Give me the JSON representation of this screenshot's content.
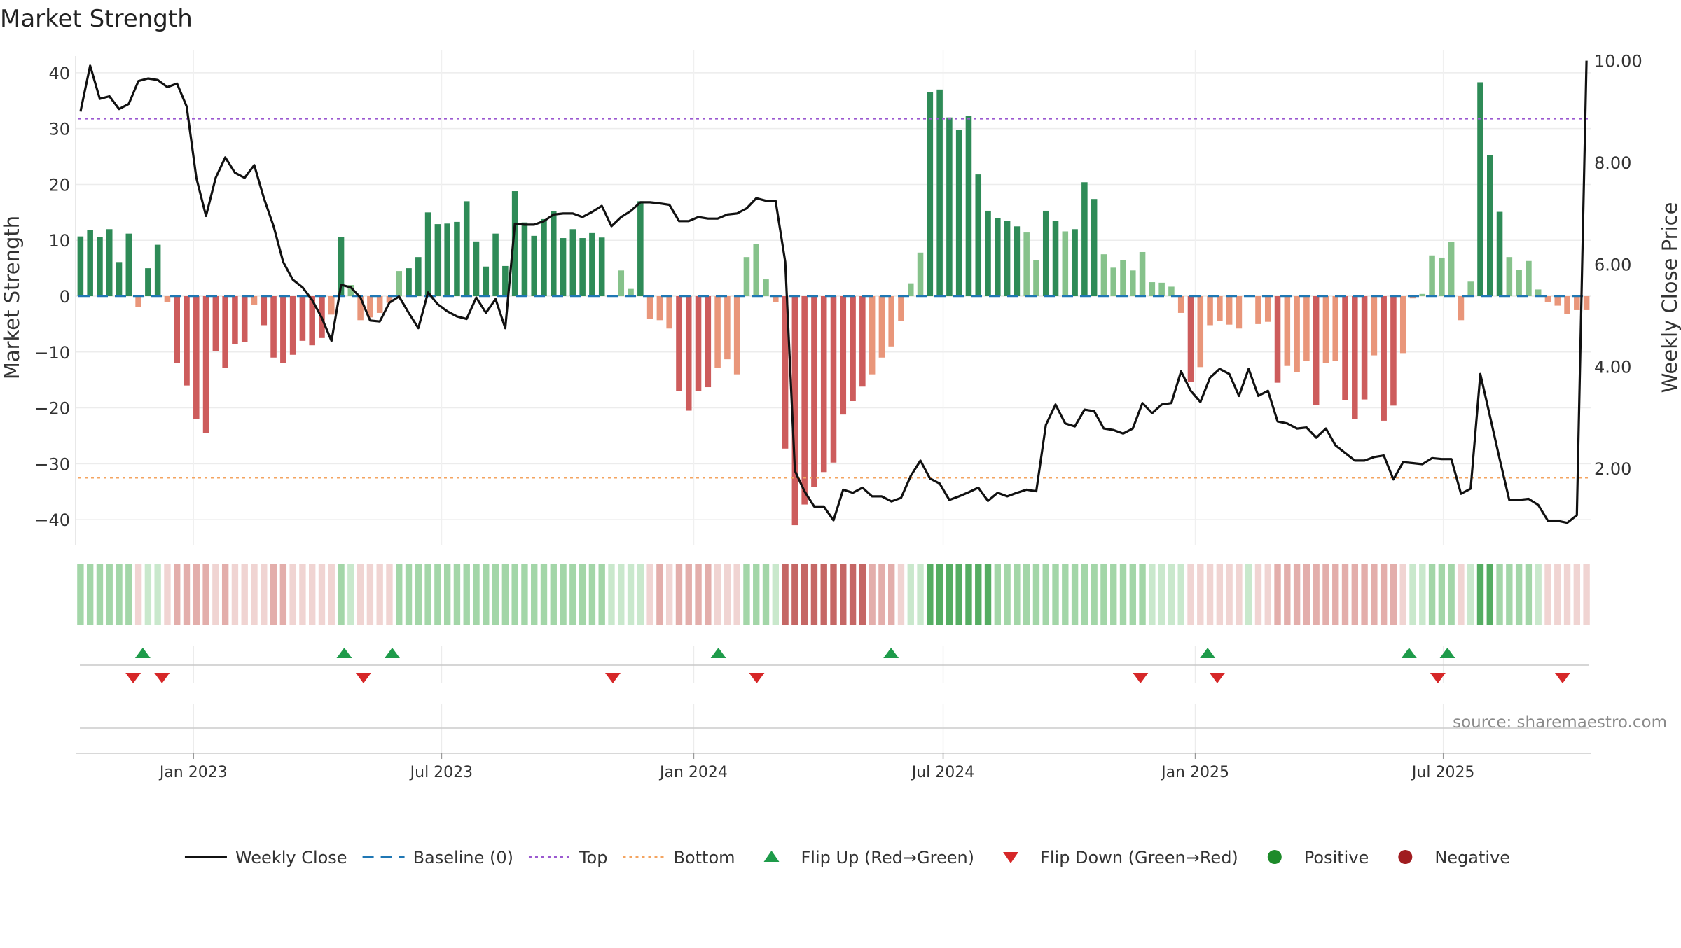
{
  "title": "Market Strength",
  "source": "source: sharemaestro.com",
  "colors": {
    "strong_pos": "#2e8b57",
    "weak_pos": "#86c28b",
    "strong_neg": "#cd5c5c",
    "weak_neg": "#e9967a",
    "price": "#111111",
    "baseline": "#1f77b4",
    "top": "#9b59d0",
    "bottom": "#f4a460",
    "flip_up": "#1e9b4a",
    "flip_down": "#d62728",
    "positive": "#1e8b2a",
    "negative": "#a01c20"
  },
  "legend": [
    {
      "key": "weekly-close",
      "label": "Weekly Close",
      "kind": "line"
    },
    {
      "key": "baseline",
      "label": "Baseline (0)",
      "kind": "dash"
    },
    {
      "key": "top",
      "label": "Top",
      "kind": "dot"
    },
    {
      "key": "bottom",
      "label": "Bottom",
      "kind": "dot"
    },
    {
      "key": "flip-up",
      "label": "Flip Up (Red→Green)",
      "kind": "tri-up"
    },
    {
      "key": "flip-down",
      "label": "Flip Down (Green→Red)",
      "kind": "tri-down"
    },
    {
      "key": "positive",
      "label": "Positive",
      "kind": "circle"
    },
    {
      "key": "negative",
      "label": "Negative",
      "kind": "circle"
    }
  ],
  "chart_data": {
    "type": "bar",
    "title": "Market Strength",
    "x_start": "2022-10-07",
    "x_end": "2025-10-17",
    "x_ticks": [
      {
        "date": "2023-01-01",
        "label": "Jan 2023"
      },
      {
        "date": "2023-07-01",
        "label": "Jul 2023"
      },
      {
        "date": "2024-01-01",
        "label": "Jan 2024"
      },
      {
        "date": "2024-07-01",
        "label": "Jul 2024"
      },
      {
        "date": "2025-01-01",
        "label": "Jan 2025"
      },
      {
        "date": "2025-07-01",
        "label": "Jul 2025"
      }
    ],
    "y_left": {
      "label": "Market Strength",
      "lim": [
        -44.5,
        44
      ],
      "ticks": [
        {
          "value": 40,
          "label": "40"
        },
        {
          "value": 30,
          "label": "30"
        },
        {
          "value": 20,
          "label": "20"
        },
        {
          "value": 10,
          "label": "10"
        },
        {
          "value": 0,
          "label": "0"
        },
        {
          "value": -10,
          "label": "−10"
        },
        {
          "value": -20,
          "label": "−20"
        },
        {
          "value": -30,
          "label": "−30"
        },
        {
          "value": -40,
          "label": "−40"
        }
      ]
    },
    "y_right": {
      "label": "Weekly Close Price",
      "lim": [
        0.5,
        10.2
      ],
      "ticks": [
        {
          "value": 10,
          "label": "10.00"
        },
        {
          "value": 8,
          "label": "8.00"
        },
        {
          "value": 6,
          "label": "6.00"
        },
        {
          "value": 4,
          "label": "4.00"
        },
        {
          "value": 2,
          "label": "2.00"
        }
      ]
    },
    "top_level": 31.8,
    "bottom_level": -32.5,
    "strength": [
      10.7,
      11.8,
      10.6,
      12.0,
      6.1,
      11.2,
      -2.0,
      5.0,
      9.2,
      -1.0,
      -12.0,
      -16.0,
      -22.0,
      -24.5,
      -9.8,
      -12.8,
      -8.6,
      -8.2,
      -1.5,
      -5.2,
      -11.0,
      -12.0,
      -10.5,
      -8.0,
      -8.8,
      -7.5,
      -3.3,
      10.6,
      2.0,
      -4.3,
      -3.8,
      -3.0,
      -1.2,
      4.5,
      5.0,
      7.0,
      15.0,
      12.9,
      13.0,
      13.3,
      17.0,
      9.8,
      5.3,
      11.2,
      5.4,
      18.8,
      13.2,
      10.8,
      13.8,
      15.2,
      10.4,
      12.0,
      10.4,
      11.3,
      10.5,
      0.0,
      4.6,
      1.3,
      17.0,
      -4.1,
      -4.3,
      -5.8,
      -17.0,
      -20.5,
      -17.0,
      -16.3,
      -12.8,
      -11.3,
      -14.0,
      7.0,
      9.3,
      3.0,
      -1.0,
      -27.3,
      -41.0,
      -37.3,
      -34.2,
      -31.5,
      -29.8,
      -21.2,
      -18.8,
      -16.2,
      -14.0,
      -11.0,
      -9.0,
      -4.5,
      2.3,
      7.8,
      36.5,
      37.0,
      32.0,
      29.8,
      32.3,
      21.8,
      15.3,
      14.0,
      13.5,
      12.5,
      11.4,
      6.5,
      15.3,
      13.5,
      11.6,
      12.0,
      20.4,
      17.4,
      7.5,
      5.1,
      6.5,
      4.6,
      7.9,
      2.5,
      2.4,
      1.7,
      -3.0,
      -15.3,
      -12.7,
      -5.2,
      -4.5,
      -5.1,
      -5.8,
      0.0,
      -5.0,
      -4.6,
      -15.5,
      -12.5,
      -13.6,
      -11.6,
      -19.5,
      -12.0,
      -11.6,
      -18.6,
      -22.0,
      -18.5,
      -10.6,
      -22.3,
      -19.6,
      -10.2,
      -0.4,
      0.4,
      7.3,
      6.9,
      9.7,
      -4.3,
      2.6,
      38.3,
      25.3,
      15.1,
      7.0,
      4.7,
      6.3,
      1.2,
      -1.0,
      -1.7,
      -3.2,
      -2.5,
      -2.5
    ],
    "weekly_close": [
      9.0,
      9.9,
      9.25,
      9.3,
      9.05,
      9.15,
      9.6,
      9.65,
      9.62,
      9.48,
      9.55,
      9.1,
      7.7,
      6.95,
      7.7,
      8.1,
      7.8,
      7.7,
      7.95,
      7.3,
      6.75,
      6.05,
      5.7,
      5.55,
      5.3,
      4.95,
      4.5,
      5.6,
      5.55,
      5.35,
      4.9,
      4.88,
      5.25,
      5.37,
      5.05,
      4.75,
      5.45,
      5.22,
      5.08,
      4.98,
      4.93,
      5.35,
      5.05,
      5.32,
      4.75,
      6.8,
      6.78,
      6.78,
      6.85,
      6.98,
      7.0,
      7.0,
      6.93,
      7.03,
      7.15,
      6.75,
      6.93,
      7.05,
      7.22,
      7.22,
      7.2,
      7.17,
      6.85,
      6.85,
      6.93,
      6.9,
      6.9,
      6.98,
      7.0,
      7.1,
      7.3,
      7.25,
      7.25,
      6.05,
      1.95,
      1.55,
      1.25,
      1.25,
      0.98,
      1.58,
      1.52,
      1.62,
      1.45,
      1.45,
      1.35,
      1.42,
      1.85,
      2.15,
      1.8,
      1.7,
      1.38,
      1.45,
      1.53,
      1.62,
      1.36,
      1.52,
      1.45,
      1.52,
      1.58,
      1.55,
      2.85,
      3.25,
      2.88,
      2.82,
      3.15,
      3.12,
      2.78,
      2.75,
      2.68,
      2.78,
      3.28,
      3.08,
      3.25,
      3.28,
      3.9,
      3.52,
      3.3,
      3.78,
      3.95,
      3.85,
      3.42,
      3.95,
      3.42,
      3.52,
      2.92,
      2.88,
      2.78,
      2.8,
      2.6,
      2.78,
      2.45,
      2.3,
      2.15,
      2.15,
      2.22,
      2.25,
      1.78,
      2.12,
      2.1,
      2.08,
      2.2,
      2.18,
      2.18,
      1.5,
      1.6,
      3.85,
      3.02,
      2.18,
      1.38,
      1.38,
      1.4,
      1.28,
      0.97,
      0.97,
      0.93,
      1.08,
      10.0
    ],
    "status_strip": [
      "PW",
      "PW",
      "PW",
      "PW",
      "PW",
      "PW",
      "NV",
      "PV",
      "PV",
      "NV",
      "NW",
      "NW",
      "NW",
      "NW",
      "NV",
      "NW",
      "NV",
      "NV",
      "NV",
      "NV",
      "NW",
      "NW",
      "NV",
      "NV",
      "NV",
      "NV",
      "NV",
      "PW",
      "PV",
      "NV",
      "NV",
      "NV",
      "NV",
      "PW",
      "PW",
      "PW",
      "PW",
      "PW",
      "PW",
      "PW",
      "PW",
      "PW",
      "PW",
      "PW",
      "PW",
      "PW",
      "PW",
      "PW",
      "PW",
      "PW",
      "PW",
      "PW",
      "PW",
      "PW",
      "PW",
      "PV",
      "PV",
      "PV",
      "PV",
      "NV",
      "NW",
      "NV",
      "NW",
      "NW",
      "NW",
      "NW",
      "NV",
      "NV",
      "NV",
      "PW",
      "PW",
      "PW",
      "PV",
      "NX",
      "NX",
      "NX",
      "NX",
      "NX",
      "NX",
      "NX",
      "NX",
      "NX",
      "NW",
      "NW",
      "NW",
      "NV",
      "PV",
      "PV",
      "PX",
      "PX",
      "PX",
      "PX",
      "PX",
      "PX",
      "PX",
      "PW",
      "PW",
      "PW",
      "PW",
      "PW",
      "PW",
      "PW",
      "PW",
      "PW",
      "PW",
      "PW",
      "PW",
      "PW",
      "PW",
      "PW",
      "PW",
      "PV",
      "PV",
      "PV",
      "PV",
      "NV",
      "NV",
      "NV",
      "NV",
      "NV",
      "NV",
      "PV",
      "NV",
      "NV",
      "NW",
      "NW",
      "NW",
      "NW",
      "NW",
      "NW",
      "NW",
      "NW",
      "NW",
      "NW",
      "NW",
      "NW",
      "NW",
      "NV",
      "PV",
      "PV",
      "PW",
      "PW",
      "PW",
      "NV",
      "PV",
      "PX",
      "PX",
      "PW",
      "PW",
      "PW",
      "PW",
      "PV",
      "NV",
      "NV",
      "NV",
      "NV",
      "NV"
    ],
    "flip_up_dates": [
      "2022-11-25",
      "2023-04-21",
      "2023-05-26",
      "2024-01-19",
      "2024-05-24",
      "2025-01-10",
      "2025-06-06",
      "2025-07-04"
    ],
    "flip_down_dates": [
      "2022-11-18",
      "2022-12-09",
      "2023-05-05",
      "2023-11-03",
      "2024-02-16",
      "2024-11-22",
      "2025-01-17",
      "2025-06-27",
      "2025-09-26"
    ]
  }
}
